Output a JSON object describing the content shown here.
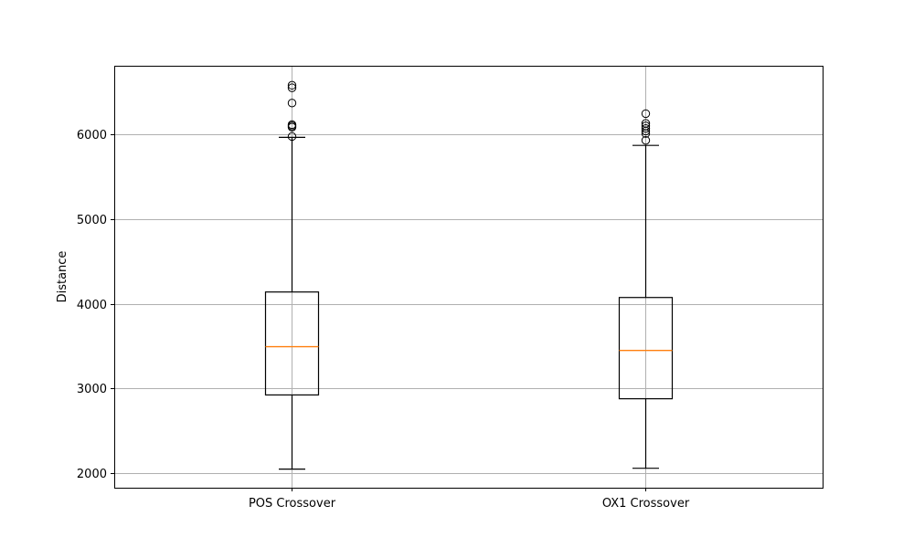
{
  "chart_data": {
    "type": "box",
    "title": "",
    "xlabel": "",
    "ylabel": "Distance",
    "ylim": [
      1830,
      6810
    ],
    "yticks": [
      2000,
      3000,
      4000,
      5000,
      6000
    ],
    "ytick_labels": [
      "2000",
      "3000",
      "4000",
      "5000",
      "6000"
    ],
    "grid": true,
    "categories": [
      "POS Crossover",
      "OX1 Crossover"
    ],
    "boxes": [
      {
        "category": "POS Crossover",
        "whisker_low": 2050,
        "q1": 2925,
        "median": 3495,
        "q3": 4140,
        "whisker_high": 5965,
        "outliers": [
          5975,
          6085,
          6100,
          6115,
          6370,
          6550,
          6580
        ]
      },
      {
        "category": "OX1 Crossover",
        "whisker_low": 2060,
        "q1": 2880,
        "median": 3450,
        "q3": 4075,
        "whisker_high": 5870,
        "outliers": [
          5930,
          6010,
          6040,
          6070,
          6100,
          6130,
          6245
        ]
      }
    ],
    "colors": {
      "box": "#000000",
      "median": "#ff7f0e",
      "grid": "#b0b0b0"
    }
  }
}
